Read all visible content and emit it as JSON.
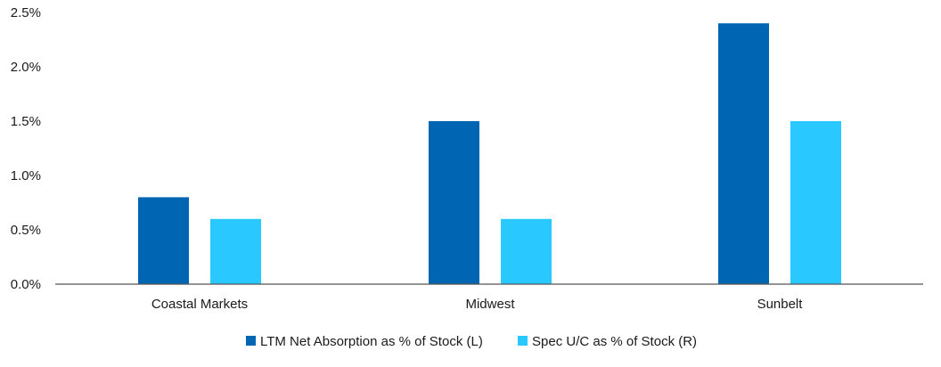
{
  "chart_data": {
    "type": "bar",
    "title": "",
    "xlabel": "",
    "ylabel": "",
    "categories": [
      "Coastal Markets",
      "Midwest",
      "Sunbelt"
    ],
    "series": [
      {
        "name": "LTM Net Absorption as % of Stock (L)",
        "color": "#0066b3",
        "values": [
          0.8,
          1.5,
          2.4
        ]
      },
      {
        "name": "Spec U/C as % of Stock (R)",
        "color": "#29c8ff",
        "values": [
          0.6,
          0.6,
          1.5
        ]
      }
    ],
    "ylim": [
      0,
      2.5
    ],
    "yticks": [
      "0.0%",
      "0.5%",
      "1.0%",
      "1.5%",
      "2.0%",
      "2.5%"
    ],
    "grid": false,
    "legend": "bottom-center"
  }
}
